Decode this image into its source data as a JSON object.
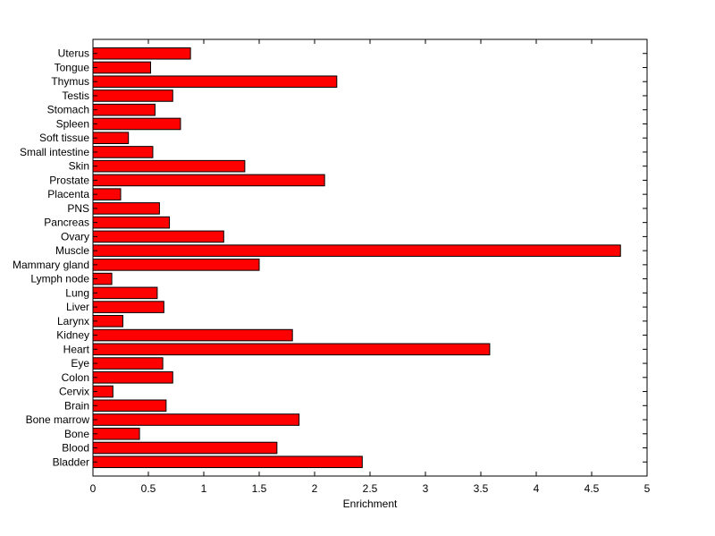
{
  "chart_data": {
    "type": "bar",
    "orientation": "horizontal",
    "title": "",
    "xlabel": "Enrichment",
    "ylabel": "",
    "xlim": [
      0,
      5
    ],
    "x_ticks": [
      "0",
      "0.5",
      "1",
      "1.5",
      "2",
      "2.5",
      "3",
      "3.5",
      "4",
      "4.5",
      "5"
    ],
    "grid": false,
    "legend": "none",
    "bar_color": "#ff0000",
    "bar_edge_color": "#000000",
    "categories": [
      "Bladder",
      "Blood",
      "Bone",
      "Bone marrow",
      "Brain",
      "Cervix",
      "Colon",
      "Eye",
      "Heart",
      "Kidney",
      "Larynx",
      "Liver",
      "Lung",
      "Lymph node",
      "Mammary gland",
      "Muscle",
      "Ovary",
      "Pancreas",
      "PNS",
      "Placenta",
      "Prostate",
      "Skin",
      "Small intestine",
      "Soft tissue",
      "Spleen",
      "Stomach",
      "Testis",
      "Thymus",
      "Tongue",
      "Uterus"
    ],
    "values": [
      2.43,
      1.66,
      0.42,
      1.86,
      0.66,
      0.18,
      0.72,
      0.63,
      3.58,
      1.8,
      0.27,
      0.64,
      0.58,
      0.17,
      1.5,
      4.76,
      1.18,
      0.69,
      0.6,
      0.25,
      2.09,
      1.37,
      0.54,
      0.32,
      0.79,
      0.56,
      0.72,
      2.2,
      0.52,
      0.88
    ]
  }
}
